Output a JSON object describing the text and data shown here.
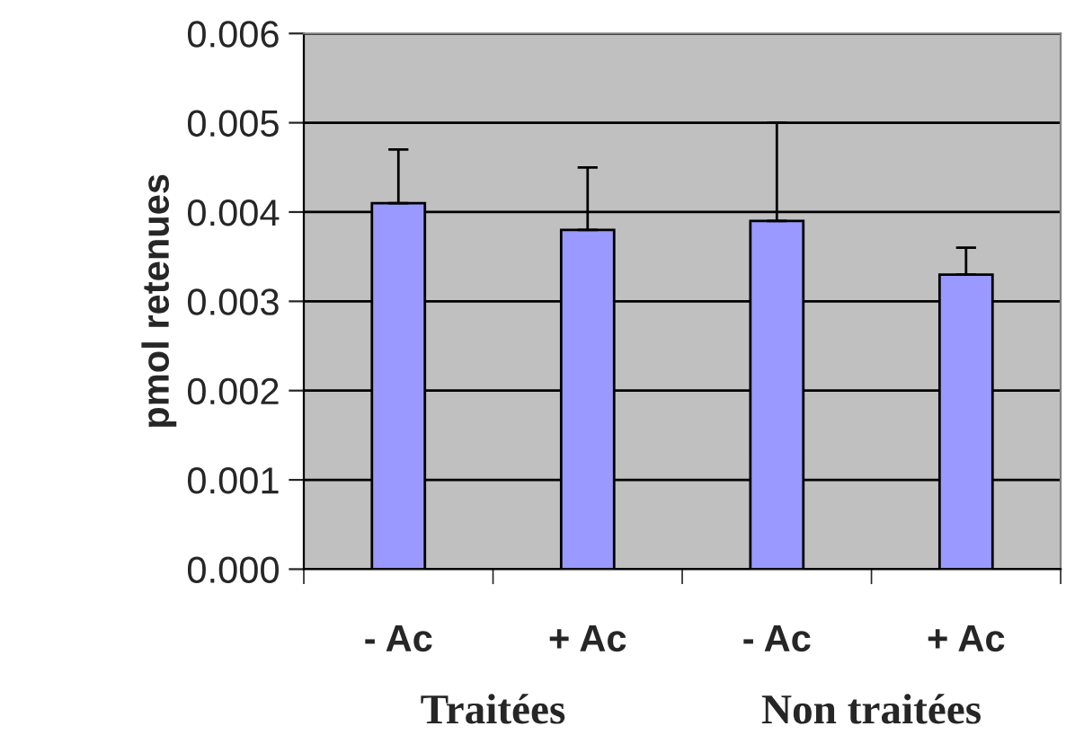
{
  "chart_data": {
    "type": "bar",
    "ylabel": "pmol retenues",
    "categories": [
      "- Ac",
      "+ Ac",
      "- Ac",
      "+ Ac"
    ],
    "values": [
      0.0041,
      0.0038,
      0.0039,
      0.0033
    ],
    "errors": [
      [
        0.0041,
        0.0047
      ],
      [
        0.0038,
        0.0045
      ],
      [
        0.0039,
        0.005
      ],
      [
        0.0033,
        0.0036
      ]
    ],
    "color": "#9999ff",
    "ylim": [
      0,
      0.006
    ],
    "yticks": [
      {
        "value": 0,
        "label": "0.000"
      },
      {
        "value": 0.001,
        "label": "0.001"
      },
      {
        "value": 0.002,
        "label": "0.002"
      },
      {
        "value": 0.003,
        "label": "0.003"
      },
      {
        "value": 0.004,
        "label": "0.004"
      },
      {
        "value": 0.005,
        "label": "0.005"
      },
      {
        "value": 0.006,
        "label": "0.006"
      }
    ],
    "grid": "y",
    "annotations": [
      "Traitées",
      "Non traitées"
    ]
  }
}
